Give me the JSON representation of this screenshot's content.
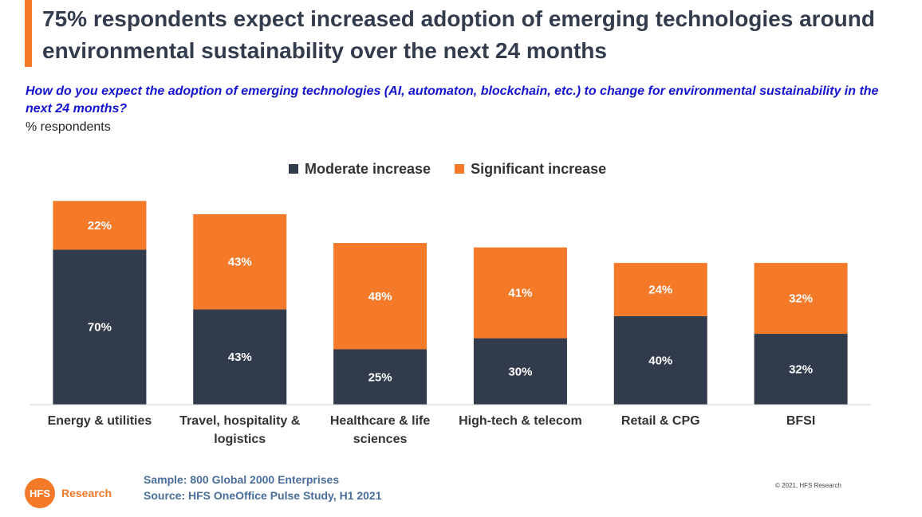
{
  "title": "75% respondents expect increased adoption of emerging technologies around environmental sustainability over the next 24 months",
  "question": "How do you expect the adoption of emerging technologies (AI, automaton, blockchain, etc.) to change for environmental sustainability in the next 24 months?",
  "unit_label": "% respondents",
  "colors": {
    "moderate": "#323b4c",
    "significant": "#f47a2a",
    "accent": "#f47a2a"
  },
  "chart_data": {
    "type": "bar",
    "stacked": true,
    "categories": [
      "Energy & utilities",
      "Travel, hospitality & logistics",
      "Healthcare & life sciences",
      "High-tech & telecom",
      "Retail & CPG",
      "BFSI"
    ],
    "series": [
      {
        "name": "Moderate increase",
        "values": [
          70,
          43,
          25,
          30,
          40,
          32
        ],
        "labels": [
          "70%",
          "43%",
          "25%",
          "30%",
          "40%",
          "32%"
        ]
      },
      {
        "name": "Significant increase",
        "values": [
          22,
          43,
          48,
          41,
          24,
          32
        ],
        "labels": [
          "22%",
          "43%",
          "48%",
          "41%",
          "24%",
          "32%"
        ]
      }
    ],
    "ylim": [
      0,
      100
    ],
    "legend_position": "top",
    "grid": false
  },
  "footer": {
    "sample": "Sample: 800 Global 2000 Enterprises",
    "source": "Source:  HFS OneOffice Pulse Study, H1 2021",
    "logo_mark": "HFS",
    "logo_text": "Research",
    "copyright": "© 2021, HFS Research"
  }
}
